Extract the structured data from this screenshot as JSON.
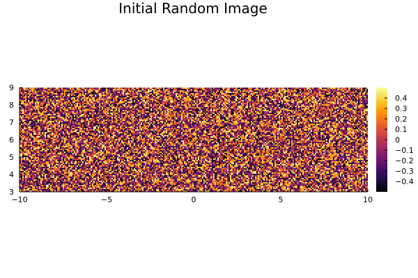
{
  "chart_data": {
    "type": "heatmap",
    "title": "Initial Random Image",
    "xlabel": "",
    "ylabel": "",
    "xlim": [
      -10,
      10
    ],
    "ylim": [
      3,
      9
    ],
    "x_ticks": [
      {
        "value": -10,
        "label": "−10"
      },
      {
        "value": -5,
        "label": "−5"
      },
      {
        "value": 0,
        "label": "0"
      },
      {
        "value": 5,
        "label": "5"
      },
      {
        "value": 10,
        "label": "10"
      }
    ],
    "y_ticks": [
      {
        "value": 3,
        "label": "3"
      },
      {
        "value": 4,
        "label": "4"
      },
      {
        "value": 5,
        "label": "5"
      },
      {
        "value": 6,
        "label": "6"
      },
      {
        "value": 7,
        "label": "7"
      },
      {
        "value": 8,
        "label": "8"
      },
      {
        "value": 9,
        "label": "9"
      }
    ],
    "grid": false,
    "legend": "none",
    "data_description_values": "uniform random noise",
    "value_range": [
      -0.5,
      0.5
    ],
    "colormap": "inferno",
    "colormap_stops": [
      "#000004",
      "#1b0c41",
      "#4a0c6b",
      "#781c6d",
      "#a52c60",
      "#cf4446",
      "#ed6925",
      "#fb9b06",
      "#f7d13d",
      "#fcffa4"
    ],
    "colorbar": {
      "range": [
        -0.5,
        0.5
      ],
      "ticks": [
        {
          "value": 0.4,
          "label": "0.4"
        },
        {
          "value": 0.3,
          "label": "0.3"
        },
        {
          "value": 0.2,
          "label": "0.2"
        },
        {
          "value": 0.1,
          "label": "0.1"
        },
        {
          "value": 0,
          "label": "0"
        },
        {
          "value": -0.1,
          "label": "−0.1"
        },
        {
          "value": -0.2,
          "label": "−0.2"
        },
        {
          "value": -0.3,
          "label": "−0.3"
        },
        {
          "value": -0.4,
          "label": "−0.4"
        }
      ]
    }
  }
}
